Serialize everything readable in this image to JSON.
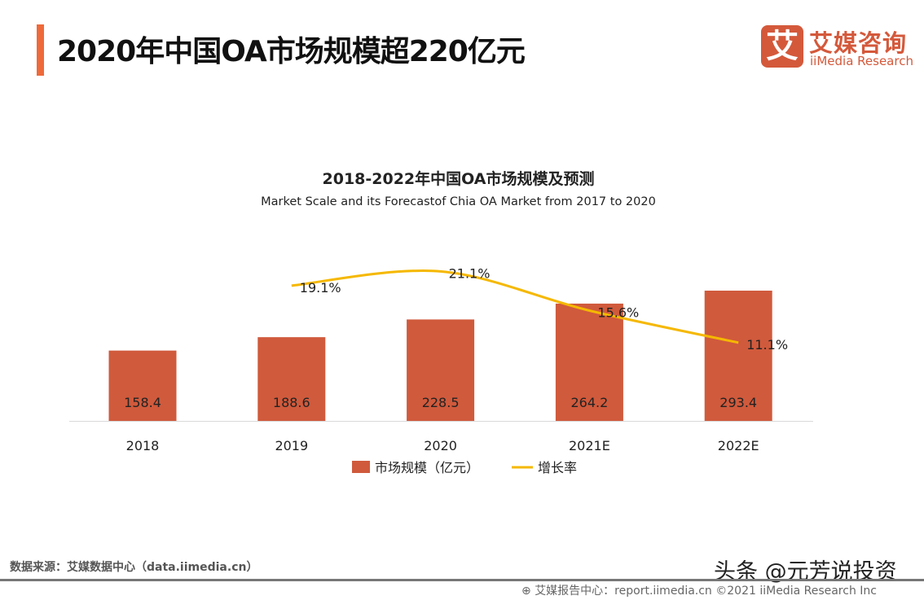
{
  "header": {
    "title": "2020年中国OA市场规模超220亿元"
  },
  "logo": {
    "glyph": "艾",
    "cn": "艾媒咨询",
    "en": "iiMedia Research"
  },
  "chart_data": {
    "type": "bar",
    "title": "2018-2022年中国OA市场规模及预测",
    "subtitle": "Market Scale and its Forecastof Chia OA Market from 2017 to 2020",
    "categories": [
      "2018",
      "2019",
      "2020",
      "2021E",
      "2022E"
    ],
    "series": [
      {
        "name": "市场规模（亿元）",
        "type": "bar",
        "color": "#d05a3c",
        "values": [
          158.4,
          188.6,
          228.5,
          264.2,
          293.4
        ],
        "labels": [
          "158.4",
          "188.6",
          "228.5",
          "264.2",
          "293.4"
        ]
      },
      {
        "name": "增长率",
        "type": "line",
        "color": "#f5b800",
        "values": [
          null,
          19.1,
          21.1,
          15.6,
          11.1
        ],
        "labels": [
          "",
          "19.1%",
          "21.1%",
          "15.6%",
          "11.1%"
        ]
      }
    ],
    "legend": "bottom-center"
  },
  "footer": {
    "source": "数据来源：艾媒数据中心（data.iimedia.cn）",
    "watermark": "头条 @元芳说投资",
    "copyright": "艾媒报告中心：report.iimedia.cn ©2021  iiMedia Research  Inc"
  }
}
